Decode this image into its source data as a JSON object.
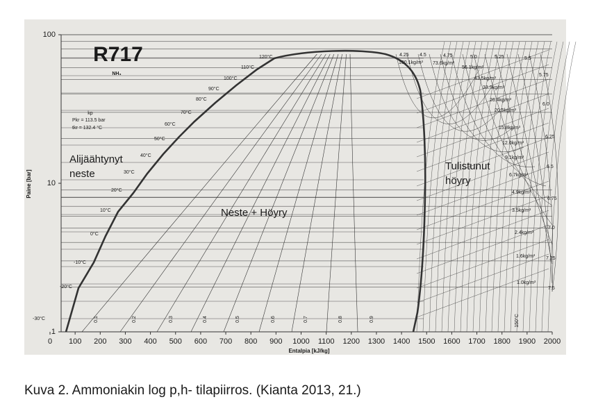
{
  "figure": {
    "title": "R717",
    "subtitle": "NH₃",
    "critical": {
      "label": "kp",
      "pressure": "Pkr = 113.5 bar",
      "temperature": "tkr = 132.4 °C"
    },
    "regions": {
      "subcooled": [
        "Alijäähtynyt",
        "neste"
      ],
      "two_phase": "Neste + Höyry",
      "superheated": [
        "Tulistunut",
        "höyry"
      ]
    },
    "y_axis": {
      "label": "Paine [bar]",
      "ticks": [
        1,
        10,
        100
      ]
    },
    "x_axis": {
      "label": "Entalpia [kJ/kg]",
      "ticks": [
        0,
        100,
        200,
        300,
        400,
        500,
        600,
        700,
        800,
        900,
        1000,
        1100,
        1200,
        1300,
        1400,
        1500,
        1600,
        1700,
        1800,
        1900,
        2000
      ]
    },
    "temperatures": [
      "-30°C",
      "-20°C",
      "-10°C",
      "0°C",
      "10°C",
      "20°C",
      "30°C",
      "40°C",
      "50°C",
      "60°C",
      "70°C",
      "80°C",
      "90°C",
      "100°C",
      "110°C",
      "120°C"
    ],
    "qualities": [
      "0.1",
      "0.2",
      "0.3",
      "0.4",
      "0.5",
      "0.6",
      "0.7",
      "0.8",
      "0.9"
    ],
    "entropies": [
      "4.25",
      "4.5",
      "4.75",
      "5.0",
      "5.25",
      "5.5",
      "5.75",
      "6.0",
      "6.25",
      "6.5",
      "6.75",
      "7.0",
      "7.25",
      "7.5"
    ],
    "densities": [
      "100.1kg/m³",
      "73.6kg/m³",
      "56.1kg/m³",
      "43.5kg/m³",
      "33.9kg/m³",
      "26.4kg/m³",
      "20.5kg/m³",
      "15.8kg/m³",
      "12.0kg/m³",
      "9.1kg/m³",
      "6.7kg/m³",
      "4.9kg/m³",
      "3.5kg/m³",
      "2.4kg/m³",
      "1.6kg/m³",
      "1.0kg/m³"
    ],
    "superheat_label": "150°C"
  },
  "caption": "Kuva 2. Ammoniakin log p,h- tilapiirros. (Kianta 2013, 21.)"
}
